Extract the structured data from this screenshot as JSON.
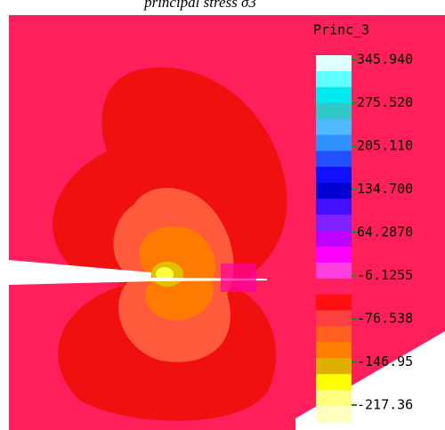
{
  "chart_data": {
    "type": "contour",
    "title": "principal stress σ3",
    "colorbar_label": "Princ_3",
    "ylim": [
      -217.36,
      345.94
    ],
    "yticks": [
      {
        "value": 345.94,
        "label": "345.940"
      },
      {
        "value": 275.52,
        "label": "275.520"
      },
      {
        "value": 205.11,
        "label": "205.110"
      },
      {
        "value": 134.7,
        "label": "134.700"
      },
      {
        "value": 64.287,
        "label": "64.2870"
      },
      {
        "value": -6.1255,
        "label": "-6.1255"
      },
      {
        "value": -76.538,
        "label": "-76.538"
      },
      {
        "value": -146.95,
        "label": "-146.95"
      },
      {
        "value": -217.36,
        "label": "-217.36"
      }
    ],
    "colorbar_colors": [
      "#e0ffff",
      "#60ffff",
      "#00e8f0",
      "#30c8c8",
      "#50b8ff",
      "#3090ff",
      "#2050ff",
      "#1010ff",
      "#0000d0",
      "#4010ff",
      "#8020ff",
      "#c000ff",
      "#ff00ff",
      "#ff40e0",
      "#ff2060",
      "#ff1010",
      "#ff4040",
      "#ff6020",
      "#ff8000",
      "#e0b000",
      "#ffff00",
      "#ffff80",
      "#ffffc0"
    ]
  }
}
